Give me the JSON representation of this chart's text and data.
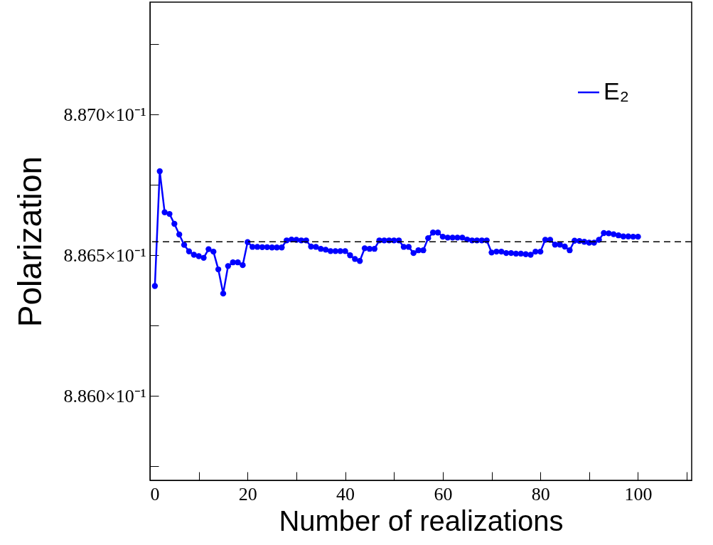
{
  "chart_data": {
    "type": "line",
    "xlabel": "Number of realizations",
    "ylabel": "Polarization",
    "x": [
      1,
      2,
      3,
      4,
      5,
      6,
      7,
      8,
      9,
      10,
      11,
      12,
      13,
      14,
      15,
      16,
      17,
      18,
      19,
      20,
      21,
      22,
      23,
      24,
      25,
      26,
      27,
      28,
      29,
      30,
      31,
      32,
      33,
      34,
      35,
      36,
      37,
      38,
      39,
      40,
      41,
      42,
      43,
      44,
      45,
      46,
      47,
      48,
      49,
      50,
      51,
      52,
      53,
      54,
      55,
      56,
      57,
      58,
      59,
      60,
      61,
      62,
      63,
      64,
      65,
      66,
      67,
      68,
      69,
      70,
      71,
      72,
      73,
      74,
      75,
      76,
      77,
      78,
      79,
      80,
      81,
      82,
      83,
      84,
      85,
      86,
      87,
      88,
      89,
      90,
      91,
      92,
      93,
      94,
      95,
      96,
      97,
      98,
      99,
      100
    ],
    "series": [
      {
        "name": "E₂",
        "color": "#0000ff",
        "values": [
          0.886391,
          0.886799,
          0.886653,
          0.886647,
          0.886612,
          0.886574,
          0.886537,
          0.886514,
          0.886502,
          0.886497,
          0.886491,
          0.886522,
          0.886513,
          0.88645,
          0.886364,
          0.886462,
          0.886475,
          0.886475,
          0.886465,
          0.886547,
          0.88653,
          0.88653,
          0.886529,
          0.886529,
          0.886528,
          0.886528,
          0.886528,
          0.886553,
          0.886556,
          0.886555,
          0.886553,
          0.886553,
          0.886531,
          0.88653,
          0.886523,
          0.88652,
          0.886515,
          0.886515,
          0.886515,
          0.886515,
          0.8865,
          0.886487,
          0.88648,
          0.886525,
          0.886523,
          0.886523,
          0.886553,
          0.886553,
          0.886553,
          0.886553,
          0.886553,
          0.88653,
          0.88653,
          0.886508,
          0.886518,
          0.886518,
          0.886561,
          0.886581,
          0.886581,
          0.886566,
          0.886563,
          0.886563,
          0.886563,
          0.886563,
          0.886556,
          0.886553,
          0.886553,
          0.886553,
          0.886553,
          0.88651,
          0.886513,
          0.886513,
          0.886508,
          0.886508,
          0.886506,
          0.886506,
          0.886504,
          0.886502,
          0.886513,
          0.886513,
          0.886555,
          0.886555,
          0.886538,
          0.886538,
          0.886531,
          0.886518,
          0.886552,
          0.886551,
          0.886548,
          0.886545,
          0.886545,
          0.886555,
          0.886579,
          0.886578,
          0.886575,
          0.886571,
          0.886567,
          0.886567,
          0.886566,
          0.886566
        ]
      }
    ],
    "xlim": [
      0,
      111
    ],
    "xticks": [
      0,
      {
        "value": 10,
        "label": null
      },
      20,
      {
        "value": 30,
        "label": null
      },
      40,
      {
        "value": 50,
        "label": null
      },
      60,
      {
        "value": 70,
        "label": null
      },
      80,
      {
        "value": 90,
        "label": null
      },
      100,
      {
        "value": 110,
        "label": null
      }
    ],
    "ylim": [
      0.8857,
      0.8874
    ],
    "yticks": [
      {
        "value": 0.88575,
        "label": null
      },
      {
        "value": 0.886,
        "label": "8.860×10⁻¹"
      },
      {
        "value": 0.88625,
        "label": null
      },
      {
        "value": 0.8865,
        "label": "8.865×10⁻¹"
      },
      {
        "value": 0.88675,
        "label": null
      },
      {
        "value": 0.887,
        "label": "8.870×10⁻¹"
      },
      {
        "value": 0.88725,
        "label": null
      }
    ],
    "ref_lines": [
      {
        "axis": "y",
        "value": 0.886548,
        "color": "#000000",
        "line_style": "dashed"
      }
    ],
    "grid": false,
    "legend": "top right",
    "marker": "circle",
    "line_style": "solid"
  }
}
